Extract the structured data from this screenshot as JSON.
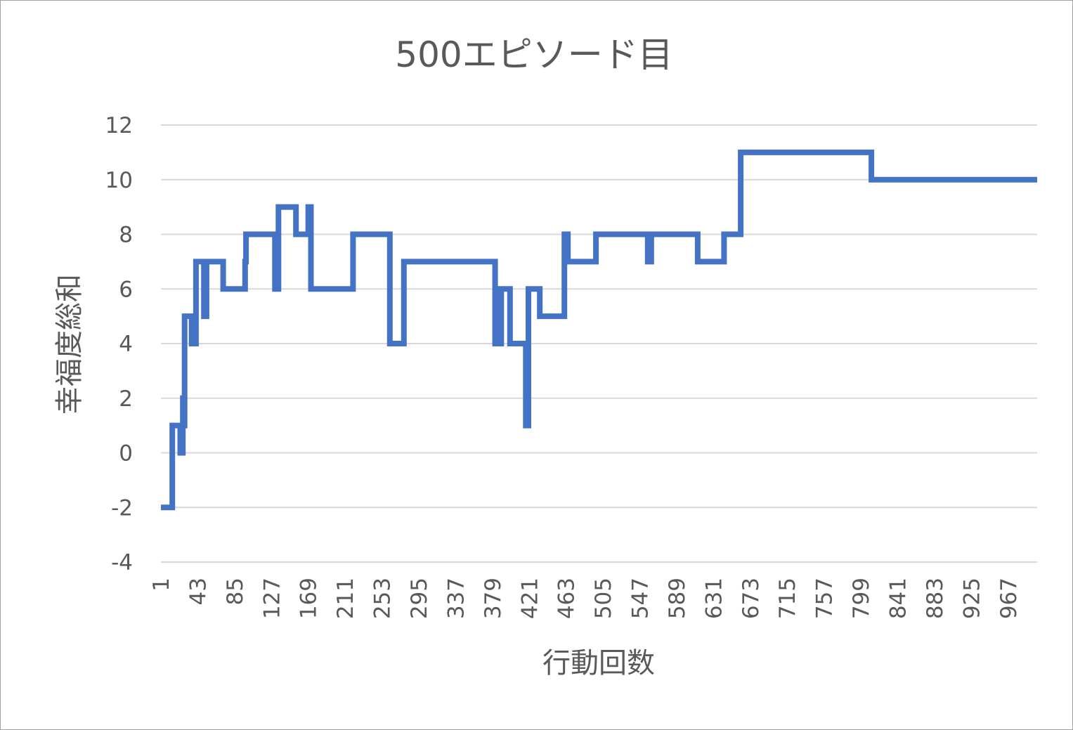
{
  "chart_data": {
    "type": "line",
    "title": "500エピソード目",
    "xlabel": "行動回数",
    "ylabel": "幸福度総和",
    "ylim": [
      -4,
      12
    ],
    "yticks": [
      -4,
      -2,
      0,
      2,
      4,
      6,
      8,
      10,
      12
    ],
    "xlim": [
      1,
      1000
    ],
    "xticks": [
      1,
      43,
      85,
      127,
      169,
      211,
      253,
      295,
      337,
      379,
      421,
      463,
      505,
      547,
      589,
      631,
      673,
      715,
      757,
      799,
      841,
      883,
      925,
      967
    ],
    "grid": true,
    "legend": "none",
    "step": true,
    "series": [
      {
        "color": "#4472c4",
        "points": [
          [
            1,
            -2
          ],
          [
            14,
            -2
          ],
          [
            14,
            1
          ],
          [
            23,
            1
          ],
          [
            23,
            0
          ],
          [
            26,
            0
          ],
          [
            26,
            2
          ],
          [
            27,
            2
          ],
          [
            27,
            1
          ],
          [
            28,
            1
          ],
          [
            28,
            5
          ],
          [
            36,
            5
          ],
          [
            36,
            4
          ],
          [
            41,
            4
          ],
          [
            41,
            7
          ],
          [
            50,
            7
          ],
          [
            50,
            5
          ],
          [
            53,
            5
          ],
          [
            53,
            7
          ],
          [
            72,
            7
          ],
          [
            72,
            6
          ],
          [
            97,
            6
          ],
          [
            97,
            7
          ],
          [
            98,
            7
          ],
          [
            98,
            8
          ],
          [
            131,
            8
          ],
          [
            131,
            6
          ],
          [
            135,
            6
          ],
          [
            135,
            9
          ],
          [
            155,
            9
          ],
          [
            155,
            8
          ],
          [
            169,
            8
          ],
          [
            169,
            9
          ],
          [
            172,
            9
          ],
          [
            172,
            6
          ],
          [
            220,
            6
          ],
          [
            220,
            8
          ],
          [
            262,
            8
          ],
          [
            262,
            4
          ],
          [
            278,
            4
          ],
          [
            278,
            7
          ],
          [
            382,
            7
          ],
          [
            382,
            4
          ],
          [
            385,
            4
          ],
          [
            385,
            6
          ],
          [
            387,
            6
          ],
          [
            387,
            4
          ],
          [
            389,
            4
          ],
          [
            389,
            6
          ],
          [
            399,
            6
          ],
          [
            399,
            4
          ],
          [
            417,
            4
          ],
          [
            417,
            1
          ],
          [
            420,
            1
          ],
          [
            420,
            6
          ],
          [
            433,
            6
          ],
          [
            433,
            5
          ],
          [
            461,
            5
          ],
          [
            461,
            8
          ],
          [
            465,
            8
          ],
          [
            465,
            7
          ],
          [
            497,
            7
          ],
          [
            497,
            8
          ],
          [
            556,
            8
          ],
          [
            556,
            7
          ],
          [
            560,
            7
          ],
          [
            560,
            8
          ],
          [
            613,
            8
          ],
          [
            613,
            7
          ],
          [
            643,
            7
          ],
          [
            643,
            8
          ],
          [
            662,
            8
          ],
          [
            662,
            11
          ],
          [
            811,
            11
          ],
          [
            811,
            10
          ],
          [
            1000,
            10
          ]
        ]
      }
    ]
  }
}
